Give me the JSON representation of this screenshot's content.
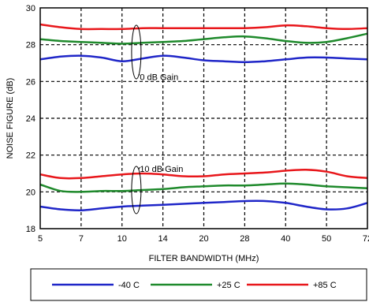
{
  "chart_data": {
    "type": "line",
    "title": "",
    "xlabel": "FILTER BANDWIDTH (MHz)",
    "ylabel": "NOISE FIGURE (dB)",
    "x_tick_labels": [
      "5",
      "7",
      "10",
      "14",
      "20",
      "28",
      "40",
      "50",
      "72"
    ],
    "y_ticks": [
      18,
      20,
      22,
      24,
      26,
      28,
      30
    ],
    "ylim": [
      18,
      30
    ],
    "grid": true,
    "legend_position": "bottom",
    "annotations": [
      {
        "text": "0 dB Gain",
        "x_index": 2.3,
        "y": 26.3
      },
      {
        "text": "10 dB Gain",
        "x_index": 2.3,
        "y": 21.3
      }
    ],
    "series": [
      {
        "name": "-40 C",
        "color": "#1f26c8",
        "group": "0 dB",
        "x_index": [
          0,
          0.5,
          1,
          1.5,
          2,
          2.5,
          3,
          3.5,
          4,
          4.5,
          5,
          5.5,
          6,
          6.5,
          7,
          7.5,
          8
        ],
        "values": [
          27.2,
          27.35,
          27.4,
          27.3,
          27.1,
          27.25,
          27.4,
          27.3,
          27.15,
          27.1,
          27.05,
          27.1,
          27.2,
          27.3,
          27.3,
          27.25,
          27.2
        ]
      },
      {
        "name": "+25 C",
        "color": "#1f8a2c",
        "group": "0 dB",
        "x_index": [
          0,
          0.5,
          1,
          1.5,
          2,
          2.5,
          3,
          3.5,
          4,
          4.5,
          5,
          5.5,
          6,
          6.5,
          7,
          7.5,
          8
        ],
        "values": [
          28.3,
          28.2,
          28.15,
          28.1,
          28.05,
          28.1,
          28.15,
          28.2,
          28.3,
          28.4,
          28.45,
          28.35,
          28.2,
          28.1,
          28.15,
          28.35,
          28.6
        ]
      },
      {
        "name": "+85 C",
        "color": "#e8171b",
        "group": "0 dB",
        "x_index": [
          0,
          0.5,
          1,
          1.5,
          2,
          2.5,
          3,
          3.5,
          4,
          4.5,
          5,
          5.5,
          6,
          6.5,
          7,
          7.5,
          8
        ],
        "values": [
          29.1,
          28.95,
          28.85,
          28.85,
          28.85,
          28.9,
          28.9,
          28.9,
          28.9,
          28.9,
          28.9,
          28.95,
          29.05,
          29.0,
          28.9,
          28.85,
          28.9
        ]
      },
      {
        "name": "-40 C",
        "color": "#1f26c8",
        "group": "10 dB",
        "x_index": [
          0,
          0.5,
          1,
          1.5,
          2,
          2.5,
          3,
          3.5,
          4,
          4.5,
          5,
          5.5,
          6,
          6.5,
          7,
          7.5,
          8
        ],
        "values": [
          19.2,
          19.05,
          19.0,
          19.1,
          19.2,
          19.25,
          19.3,
          19.35,
          19.4,
          19.45,
          19.5,
          19.5,
          19.4,
          19.2,
          19.05,
          19.1,
          19.4
        ]
      },
      {
        "name": "+25 C",
        "color": "#1f8a2c",
        "group": "10 dB",
        "x_index": [
          0,
          0.5,
          1,
          1.5,
          2,
          2.5,
          3,
          3.5,
          4,
          4.5,
          5,
          5.5,
          6,
          6.5,
          7,
          7.5,
          8
        ],
        "values": [
          20.4,
          20.05,
          20.0,
          20.05,
          20.05,
          20.1,
          20.15,
          20.25,
          20.3,
          20.35,
          20.35,
          20.4,
          20.45,
          20.4,
          20.3,
          20.25,
          20.2
        ]
      },
      {
        "name": "+85 C",
        "color": "#e8171b",
        "group": "10 dB",
        "x_index": [
          0,
          0.5,
          1,
          1.5,
          2,
          2.5,
          3,
          3.5,
          4,
          4.5,
          5,
          5.5,
          6,
          6.5,
          7,
          7.5,
          8
        ],
        "values": [
          20.95,
          20.75,
          20.75,
          20.85,
          20.95,
          21.0,
          20.95,
          20.85,
          20.85,
          20.95,
          21.0,
          21.05,
          21.15,
          21.2,
          21.1,
          20.85,
          20.75
        ]
      }
    ],
    "legend": [
      {
        "label": "-40 C",
        "color": "#1f26c8"
      },
      {
        "label": "+25 C",
        "color": "#1f8a2c"
      },
      {
        "label": "+85 C",
        "color": "#e8171b"
      }
    ]
  }
}
